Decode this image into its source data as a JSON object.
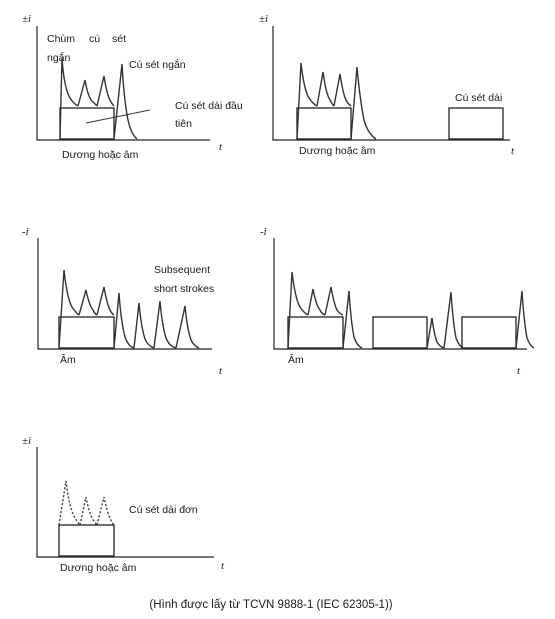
{
  "panels": {
    "p1": {
      "y_axis": "±i",
      "x_axis": "t",
      "bottom_label": "Dương hoặc âm",
      "label_chum_1": "Chùm",
      "label_chum_2": "cú",
      "label_chum_3": "sét",
      "label_chum_4": "ngắn",
      "label_short": "Cú sét ngắn",
      "label_long_first_1": "Cú sét dài đầu",
      "label_long_first_2": "tiên"
    },
    "p2": {
      "y_axis": "±i",
      "x_axis": "t",
      "bottom_label": "Dương hoặc âm",
      "label_long": "Cú sét dài"
    },
    "p3": {
      "y_axis": "-i",
      "x_axis": "t",
      "bottom_label": "Âm",
      "label_subsequent_1": "Subsequent",
      "label_subsequent_2": "short strokes"
    },
    "p4": {
      "y_axis": "-i",
      "x_axis": "t",
      "bottom_label": "Âm"
    },
    "p5": {
      "y_axis": "±i",
      "x_axis": "t",
      "bottom_label": "Dương hoặc âm",
      "label_single_long": "Cú sét dài đơn"
    }
  },
  "caption": "(Hình được lấy từ  TCVN 9888-1 (IEC 62305-1))"
}
